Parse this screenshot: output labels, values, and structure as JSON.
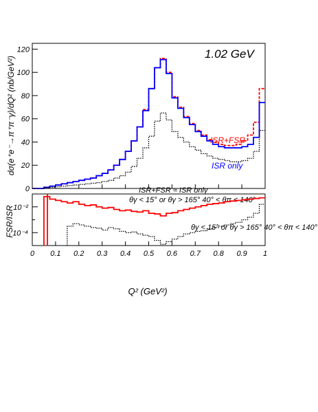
{
  "chart_data": [
    {
      "type": "line",
      "step": true,
      "energy_label": "1.02 GeV",
      "ylabel": "dσ(e⁺e⁻→π⁺π⁻γ)/dQ² (nb/GeV²)",
      "xlim": [
        0,
        1
      ],
      "ylim": [
        0,
        125
      ],
      "x_ticks": [
        0,
        0.1,
        0.2,
        0.3,
        0.4,
        0.5,
        0.6,
        0.7,
        0.8,
        0.9,
        1
      ],
      "y_ticks": [
        0,
        20,
        40,
        60,
        80,
        100,
        120
      ],
      "x": [
        0.025,
        0.05,
        0.075,
        0.1,
        0.125,
        0.15,
        0.175,
        0.2,
        0.225,
        0.25,
        0.275,
        0.3,
        0.325,
        0.35,
        0.375,
        0.4,
        0.425,
        0.45,
        0.475,
        0.5,
        0.525,
        0.55,
        0.575,
        0.6,
        0.625,
        0.65,
        0.675,
        0.7,
        0.725,
        0.75,
        0.775,
        0.8,
        0.825,
        0.85,
        0.875,
        0.9,
        0.925,
        0.95,
        0.975,
        1.0
      ],
      "series": [
        {
          "name": "ISR+FSR",
          "color": "#ff0000",
          "dash": "dashed",
          "values": [
            0,
            0,
            1,
            2,
            3,
            4,
            5,
            6,
            7,
            8,
            9,
            11,
            13,
            16,
            20,
            25,
            32,
            41,
            53,
            68,
            86,
            104,
            112,
            100,
            79,
            70,
            62,
            56,
            50,
            46,
            42,
            40,
            38,
            37,
            37,
            38,
            41,
            46,
            57,
            86
          ]
        },
        {
          "name": "ISR only",
          "color": "#0000ff",
          "dash": "solid",
          "values": [
            0,
            0,
            1,
            2,
            3,
            4,
            5,
            6,
            7,
            8,
            9,
            11,
            13,
            16,
            20,
            25,
            32,
            41,
            53,
            67,
            86,
            104,
            111,
            99,
            78,
            69,
            61,
            55,
            49,
            45,
            41,
            38,
            36,
            35,
            35,
            35,
            36,
            38,
            44,
            74
          ]
        },
        {
          "name": "",
          "color": "#000000",
          "dash": "dotted",
          "values": [
            0,
            0,
            0.5,
            1,
            1.5,
            2,
            2.5,
            3,
            3.5,
            4,
            4.5,
            5,
            6,
            7,
            9,
            11,
            14,
            19,
            26,
            35,
            45,
            58,
            65,
            59,
            49,
            44,
            40,
            36,
            33,
            30,
            28,
            26,
            25,
            24,
            23,
            23,
            24,
            26,
            32,
            50
          ]
        }
      ],
      "annotations": [
        {
          "name": "series-label-isr-fsr",
          "text": "ISR+FSR",
          "color": "#ff0000"
        },
        {
          "name": "series-label-isr-only",
          "text": "ISR only",
          "color": "#0000ff"
        },
        {
          "name": "note-approx",
          "text": "ISR+FSR ≈ ISR only",
          "color": "#000000"
        },
        {
          "name": "cut-text",
          "text": "θγ < 15° or θγ > 165°  40° < θπ < 140°",
          "color": "#000000"
        }
      ]
    },
    {
      "type": "line",
      "step": true,
      "ylabel": "FSR/ISR",
      "xlabel": "Q² (GeV²)",
      "xlim": [
        0,
        1
      ],
      "yscale": "log",
      "ylim": [
        -5,
        -1
      ],
      "y_ticks": [
        "10⁻²",
        "10⁻⁴"
      ],
      "x_ticks": [
        0,
        0.1,
        0.2,
        0.3,
        0.4,
        0.5,
        0.6,
        0.7,
        0.8,
        0.9,
        1
      ],
      "x": [
        0.025,
        0.05,
        0.075,
        0.1,
        0.125,
        0.15,
        0.175,
        0.2,
        0.225,
        0.25,
        0.275,
        0.3,
        0.325,
        0.35,
        0.375,
        0.4,
        0.425,
        0.45,
        0.475,
        0.5,
        0.525,
        0.55,
        0.575,
        0.6,
        0.625,
        0.65,
        0.675,
        0.7,
        0.725,
        0.75,
        0.775,
        0.8,
        0.825,
        0.85,
        0.875,
        0.9,
        0.925,
        0.95,
        0.975,
        1.0
      ],
      "series": [
        {
          "name": "",
          "color": "#ff0000",
          "dash": "solid",
          "values": [
            null,
            null,
            -1.2,
            -1.4,
            -1.5,
            -1.6,
            -1.7,
            -1.6,
            -1.8,
            -1.9,
            -1.85,
            -2.0,
            -2.1,
            -2.05,
            -2.2,
            -2.3,
            -2.25,
            -2.35,
            -2.4,
            -2.3,
            -2.5,
            -2.55,
            -2.7,
            -2.5,
            -2.45,
            -2.3,
            -2.2,
            -2.1,
            -2.0,
            -1.9,
            -1.8,
            -1.75,
            -1.7,
            -1.6,
            -1.55,
            -1.5,
            -1.45,
            -1.4,
            -1.35,
            -1.3
          ]
        },
        {
          "name": "",
          "color": "#000000",
          "dash": "dotted",
          "values": [
            null,
            null,
            null,
            null,
            null,
            null,
            -3.5,
            -3.3,
            -3.4,
            -3.5,
            -3.6,
            -3.65,
            -3.8,
            -3.6,
            -3.7,
            -3.9,
            -4.0,
            -3.95,
            -4.1,
            -4.2,
            -4.3,
            -4.6,
            -4.9,
            -4.7,
            -4.5,
            -4.3,
            -4.1,
            -4.0,
            -3.9,
            -3.85,
            -3.7,
            -3.6,
            -3.5,
            -3.4,
            -3.3,
            -3.2,
            -3.0,
            -2.8,
            -2.5,
            -1.8
          ]
        }
      ],
      "vline": {
        "x": 0.065,
        "color": "#ff0000"
      },
      "annotations": [
        {
          "name": "cut-text-lower",
          "text": "θγ < 15° or θγ > 165°  40° < θπ < 140°",
          "color": "#000000"
        }
      ]
    }
  ]
}
